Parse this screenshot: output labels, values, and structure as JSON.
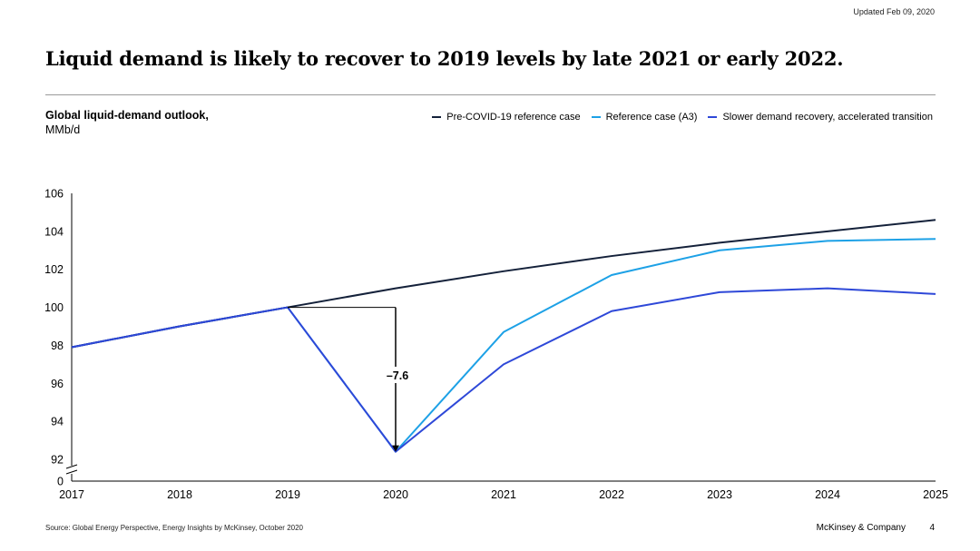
{
  "header": {
    "updated": "Updated Feb 09, 2020"
  },
  "title": "Liquid demand is likely to recover to 2019 levels by late 2021 or early 2022.",
  "colors": {
    "pre_covid": "#14213a",
    "reference": "#1da1e6",
    "slower": "#2e48d8"
  },
  "chart_data": {
    "type": "line",
    "title": "Global liquid-demand outlook,",
    "ylabel": "MMb/d",
    "xlabel": "",
    "x": [
      "2017",
      "2018",
      "2019",
      "2020",
      "2021",
      "2022",
      "2023",
      "2024",
      "2025"
    ],
    "ylim": [
      92,
      106
    ],
    "y_ticks": [
      "106",
      "104",
      "102",
      "100",
      "98",
      "96",
      "94",
      "92"
    ],
    "y_break_label": "0",
    "legend_position": "top-right",
    "series": [
      {
        "name": "Pre-COVID-19 reference case",
        "values": [
          97.9,
          99.0,
          100.0,
          101.0,
          101.9,
          102.7,
          103.4,
          104.0,
          104.6
        ]
      },
      {
        "name": "Reference case (A3)",
        "values": [
          97.9,
          99.0,
          100.0,
          92.4,
          98.7,
          101.7,
          103.0,
          103.5,
          103.6
        ]
      },
      {
        "name": "Slower demand recovery, accelerated transition",
        "values": [
          97.9,
          99.0,
          100.0,
          92.4,
          97.0,
          99.8,
          100.8,
          101.0,
          100.7
        ]
      }
    ],
    "annotation": {
      "label": "–7.6",
      "from": 100.0,
      "to": 92.4,
      "x": "2020"
    }
  },
  "footer": {
    "source": "Source: Global Energy Perspective, Energy Insights by McKinsey, October 2020",
    "company": "McKinsey & Company",
    "page": "4"
  }
}
